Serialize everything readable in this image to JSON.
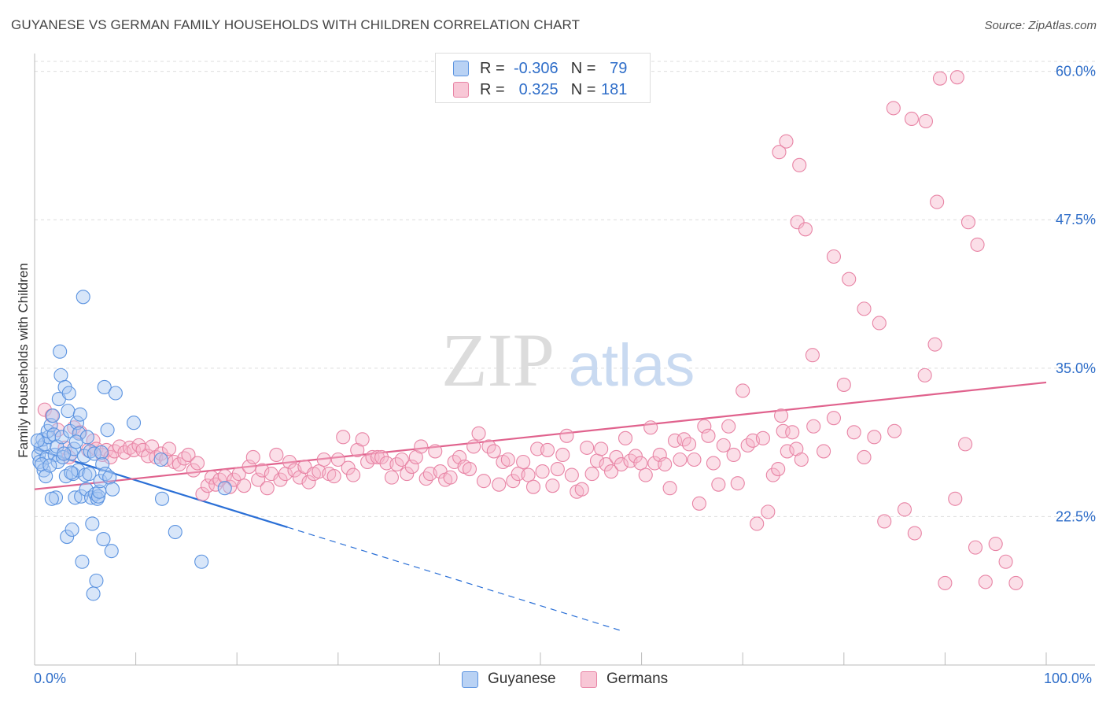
{
  "title": "GUYANESE VS GERMAN FAMILY HOUSEHOLDS WITH CHILDREN CORRELATION CHART",
  "source": "Source: ZipAtlas.com",
  "watermark": {
    "zip": "ZIP",
    "atlas": "atlas"
  },
  "legend": {
    "r_label": "R =",
    "n_label": "N =",
    "guyanese": {
      "r": "-0.306",
      "n": "79"
    },
    "germans": {
      "r": "0.325",
      "n": "181"
    }
  },
  "colors": {
    "guyanese_fill": "#a9c8f2",
    "guyanese_stroke": "#5b93e0",
    "guyanese_line": "#2a6fd6",
    "germans_fill": "#f6b8cc",
    "germans_stroke": "#e884a5",
    "germans_line": "#e0628d",
    "axis_label": "#2f6ec9",
    "grid": "#dddddd"
  },
  "chart_data": {
    "type": "scatter",
    "title": "GUYANESE VS GERMAN FAMILY HOUSEHOLDS WITH CHILDREN CORRELATION CHART",
    "xlabel": "",
    "ylabel": "Family Households with Children",
    "xlim": [
      0,
      100
    ],
    "ylim": [
      10,
      61.5
    ],
    "x_tick_labels": [
      "0.0%",
      "100.0%"
    ],
    "y_ticks": [
      22.5,
      35.0,
      47.5,
      60.0
    ],
    "y_tick_labels": [
      "22.5%",
      "35.0%",
      "47.5%",
      "60.0%"
    ],
    "grid": true,
    "legend_placement": "bottom",
    "series": [
      {
        "name": "Guyanese",
        "r": -0.306,
        "n": 79,
        "trend": {
          "x0": 0,
          "y0": 28.2,
          "x1": 100,
          "y1": 1.8,
          "solid_until_x": 25
        },
        "points": [
          [
            0.4,
            27.7
          ],
          [
            0.6,
            28.3
          ],
          [
            0.8,
            29.0
          ],
          [
            0.5,
            27.1
          ],
          [
            0.9,
            26.4
          ],
          [
            1.2,
            27.5
          ],
          [
            1.0,
            28.6
          ],
          [
            1.4,
            29.2
          ],
          [
            0.7,
            26.9
          ],
          [
            1.1,
            25.9
          ],
          [
            1.3,
            29.7
          ],
          [
            1.6,
            30.2
          ],
          [
            1.8,
            31.0
          ],
          [
            1.9,
            29.4
          ],
          [
            2.0,
            27.7
          ],
          [
            2.1,
            24.1
          ],
          [
            2.2,
            28.4
          ],
          [
            2.3,
            27.1
          ],
          [
            2.4,
            32.4
          ],
          [
            2.5,
            36.4
          ],
          [
            2.6,
            34.4
          ],
          [
            2.7,
            29.2
          ],
          [
            2.8,
            27.5
          ],
          [
            3.0,
            33.4
          ],
          [
            3.1,
            25.9
          ],
          [
            3.2,
            20.8
          ],
          [
            3.3,
            31.4
          ],
          [
            3.4,
            32.9
          ],
          [
            3.5,
            29.7
          ],
          [
            3.6,
            27.8
          ],
          [
            3.7,
            21.4
          ],
          [
            3.8,
            26.1
          ],
          [
            3.9,
            28.2
          ],
          [
            4.0,
            24.1
          ],
          [
            4.2,
            30.4
          ],
          [
            4.3,
            26.4
          ],
          [
            4.4,
            29.5
          ],
          [
            4.5,
            31.1
          ],
          [
            4.6,
            24.2
          ],
          [
            4.7,
            18.7
          ],
          [
            4.8,
            41.0
          ],
          [
            4.9,
            27.6
          ],
          [
            5.0,
            26.0
          ],
          [
            5.1,
            24.8
          ],
          [
            5.2,
            29.2
          ],
          [
            5.4,
            26.1
          ],
          [
            5.5,
            28.0
          ],
          [
            5.6,
            24.1
          ],
          [
            5.7,
            21.9
          ],
          [
            5.8,
            16.0
          ],
          [
            5.9,
            27.8
          ],
          [
            6.0,
            24.4
          ],
          [
            6.1,
            17.1
          ],
          [
            6.2,
            24.0
          ],
          [
            6.3,
            24.2
          ],
          [
            6.4,
            24.6
          ],
          [
            6.5,
            25.5
          ],
          [
            6.6,
            27.9
          ],
          [
            6.7,
            26.9
          ],
          [
            6.8,
            20.6
          ],
          [
            6.9,
            33.4
          ],
          [
            7.0,
            26.1
          ],
          [
            7.2,
            29.8
          ],
          [
            7.4,
            25.8
          ],
          [
            7.6,
            19.6
          ],
          [
            7.7,
            24.8
          ],
          [
            8.0,
            32.9
          ],
          [
            9.8,
            30.4
          ],
          [
            12.5,
            27.3
          ],
          [
            12.6,
            24.0
          ],
          [
            13.9,
            21.2
          ],
          [
            16.5,
            18.7
          ],
          [
            18.8,
            24.9
          ],
          [
            2.9,
            27.8
          ],
          [
            1.5,
            26.8
          ],
          [
            3.6,
            26.2
          ],
          [
            0.3,
            28.9
          ],
          [
            1.7,
            24.0
          ],
          [
            4.1,
            28.8
          ]
        ]
      },
      {
        "name": "Germans",
        "r": 0.325,
        "n": 181,
        "trend": {
          "x0": 0,
          "y0": 24.8,
          "x1": 100,
          "y1": 33.8
        },
        "points": [
          [
            1.0,
            31.5
          ],
          [
            1.7,
            31.0
          ],
          [
            2.3,
            29.8
          ],
          [
            3.0,
            28.3
          ],
          [
            3.4,
            27.5
          ],
          [
            3.9,
            30.0
          ],
          [
            4.5,
            29.6
          ],
          [
            5.3,
            28.1
          ],
          [
            5.8,
            28.9
          ],
          [
            6.1,
            28.2
          ],
          [
            6.7,
            27.7
          ],
          [
            7.1,
            28.1
          ],
          [
            7.5,
            27.5
          ],
          [
            7.9,
            28.0
          ],
          [
            8.4,
            28.4
          ],
          [
            8.9,
            27.9
          ],
          [
            9.4,
            28.3
          ],
          [
            9.8,
            28.1
          ],
          [
            10.3,
            28.5
          ],
          [
            10.7,
            28.1
          ],
          [
            11.2,
            27.6
          ],
          [
            11.6,
            28.4
          ],
          [
            12.0,
            27.5
          ],
          [
            12.5,
            27.8
          ],
          [
            13.0,
            27.3
          ],
          [
            13.3,
            28.2
          ],
          [
            13.8,
            27.1
          ],
          [
            14.3,
            26.9
          ],
          [
            14.8,
            27.4
          ],
          [
            15.2,
            27.7
          ],
          [
            15.7,
            26.4
          ],
          [
            16.1,
            27.0
          ],
          [
            16.6,
            24.4
          ],
          [
            17.1,
            25.1
          ],
          [
            17.5,
            25.8
          ],
          [
            17.9,
            25.2
          ],
          [
            18.3,
            25.6
          ],
          [
            18.8,
            25.9
          ],
          [
            19.3,
            25.0
          ],
          [
            19.7,
            25.6
          ],
          [
            20.2,
            26.1
          ],
          [
            20.7,
            25.1
          ],
          [
            21.2,
            26.7
          ],
          [
            21.6,
            27.5
          ],
          [
            22.1,
            25.6
          ],
          [
            22.5,
            26.4
          ],
          [
            23.0,
            24.9
          ],
          [
            23.4,
            26.1
          ],
          [
            23.9,
            27.7
          ],
          [
            24.3,
            25.6
          ],
          [
            24.8,
            26.1
          ],
          [
            25.2,
            27.1
          ],
          [
            25.7,
            26.4
          ],
          [
            26.2,
            25.8
          ],
          [
            26.7,
            26.7
          ],
          [
            27.1,
            25.4
          ],
          [
            27.6,
            26.1
          ],
          [
            28.1,
            26.3
          ],
          [
            28.6,
            27.3
          ],
          [
            29.1,
            26.1
          ],
          [
            29.6,
            25.9
          ],
          [
            30.0,
            27.3
          ],
          [
            30.5,
            29.2
          ],
          [
            31.0,
            26.6
          ],
          [
            31.5,
            26.0
          ],
          [
            31.9,
            28.1
          ],
          [
            32.4,
            29.0
          ],
          [
            32.9,
            27.1
          ],
          [
            33.4,
            27.5
          ],
          [
            33.9,
            27.5
          ],
          [
            34.3,
            27.5
          ],
          [
            34.8,
            27.0
          ],
          [
            35.3,
            25.8
          ],
          [
            35.8,
            26.9
          ],
          [
            36.3,
            27.3
          ],
          [
            36.8,
            26.1
          ],
          [
            37.3,
            26.7
          ],
          [
            37.7,
            27.5
          ],
          [
            38.2,
            28.4
          ],
          [
            38.7,
            25.7
          ],
          [
            39.1,
            26.1
          ],
          [
            39.6,
            28.0
          ],
          [
            40.1,
            26.3
          ],
          [
            40.6,
            25.6
          ],
          [
            41.1,
            25.8
          ],
          [
            41.5,
            27.1
          ],
          [
            42.0,
            27.5
          ],
          [
            42.5,
            26.7
          ],
          [
            43.0,
            26.5
          ],
          [
            43.4,
            28.4
          ],
          [
            43.9,
            29.5
          ],
          [
            44.4,
            25.5
          ],
          [
            44.9,
            28.4
          ],
          [
            45.4,
            28.0
          ],
          [
            45.9,
            25.2
          ],
          [
            46.3,
            27.1
          ],
          [
            46.8,
            27.3
          ],
          [
            47.3,
            25.5
          ],
          [
            47.8,
            26.1
          ],
          [
            48.3,
            27.1
          ],
          [
            48.8,
            26.0
          ],
          [
            49.3,
            25.0
          ],
          [
            49.7,
            28.2
          ],
          [
            50.2,
            26.3
          ],
          [
            50.7,
            28.1
          ],
          [
            51.2,
            25.1
          ],
          [
            51.7,
            26.5
          ],
          [
            52.2,
            27.7
          ],
          [
            52.6,
            29.3
          ],
          [
            53.1,
            26.0
          ],
          [
            53.6,
            24.6
          ],
          [
            54.1,
            24.8
          ],
          [
            54.6,
            28.3
          ],
          [
            55.1,
            26.1
          ],
          [
            55.6,
            27.2
          ],
          [
            56.0,
            28.2
          ],
          [
            56.5,
            26.9
          ],
          [
            57.0,
            26.3
          ],
          [
            57.5,
            27.5
          ],
          [
            58.0,
            26.9
          ],
          [
            58.4,
            29.1
          ],
          [
            58.9,
            27.2
          ],
          [
            59.4,
            27.6
          ],
          [
            59.9,
            27.0
          ],
          [
            60.4,
            26.0
          ],
          [
            60.9,
            30.0
          ],
          [
            61.3,
            27.0
          ],
          [
            61.8,
            27.7
          ],
          [
            62.3,
            26.9
          ],
          [
            62.8,
            24.9
          ],
          [
            63.3,
            28.9
          ],
          [
            63.8,
            27.3
          ],
          [
            64.2,
            29.0
          ],
          [
            64.7,
            28.6
          ],
          [
            65.2,
            27.3
          ],
          [
            65.7,
            23.6
          ],
          [
            66.2,
            30.1
          ],
          [
            66.6,
            29.3
          ],
          [
            67.1,
            27.0
          ],
          [
            67.6,
            25.2
          ],
          [
            68.1,
            28.5
          ],
          [
            68.6,
            30.1
          ],
          [
            69.1,
            27.7
          ],
          [
            69.5,
            25.3
          ],
          [
            70.0,
            33.1
          ],
          [
            70.5,
            28.5
          ],
          [
            71.0,
            28.9
          ],
          [
            71.4,
            21.9
          ],
          [
            72.0,
            29.1
          ],
          [
            72.5,
            22.9
          ],
          [
            73.0,
            26.0
          ],
          [
            73.5,
            26.5
          ],
          [
            74.0,
            29.7
          ],
          [
            74.4,
            28.0
          ],
          [
            74.9,
            29.6
          ],
          [
            75.3,
            28.2
          ],
          [
            75.8,
            27.3
          ],
          [
            77.0,
            30.1
          ],
          [
            78.0,
            28.0
          ],
          [
            79.0,
            30.8
          ],
          [
            80.0,
            33.6
          ],
          [
            81.0,
            29.6
          ],
          [
            82.0,
            27.5
          ],
          [
            83.0,
            29.2
          ],
          [
            84.0,
            22.1
          ],
          [
            85.0,
            29.7
          ],
          [
            86.0,
            23.1
          ],
          [
            87.0,
            21.1
          ],
          [
            88.0,
            34.4
          ],
          [
            89.0,
            37.0
          ],
          [
            90.0,
            16.9
          ],
          [
            91.0,
            24.0
          ],
          [
            92.0,
            28.6
          ],
          [
            93.0,
            19.9
          ],
          [
            94.0,
            17.0
          ],
          [
            95.0,
            20.2
          ],
          [
            96.0,
            18.7
          ],
          [
            97.0,
            16.9
          ],
          [
            73.8,
            31.0
          ],
          [
            76.9,
            36.1
          ]
        ],
        "outliers": [
          [
            73.6,
            53.2
          ],
          [
            74.3,
            54.1
          ],
          [
            75.6,
            52.1
          ],
          [
            75.4,
            47.3
          ],
          [
            76.2,
            46.7
          ],
          [
            79.0,
            44.4
          ],
          [
            80.5,
            42.5
          ],
          [
            82.0,
            40.0
          ],
          [
            83.5,
            38.8
          ],
          [
            84.9,
            56.9
          ],
          [
            86.7,
            56.0
          ],
          [
            88.1,
            55.8
          ],
          [
            89.2,
            49.0
          ],
          [
            89.5,
            59.4
          ],
          [
            91.2,
            59.5
          ],
          [
            92.3,
            47.3
          ],
          [
            93.2,
            45.4
          ]
        ]
      }
    ]
  },
  "bottom_legend": {
    "guyanese": "Guyanese",
    "germans": "Germans"
  }
}
